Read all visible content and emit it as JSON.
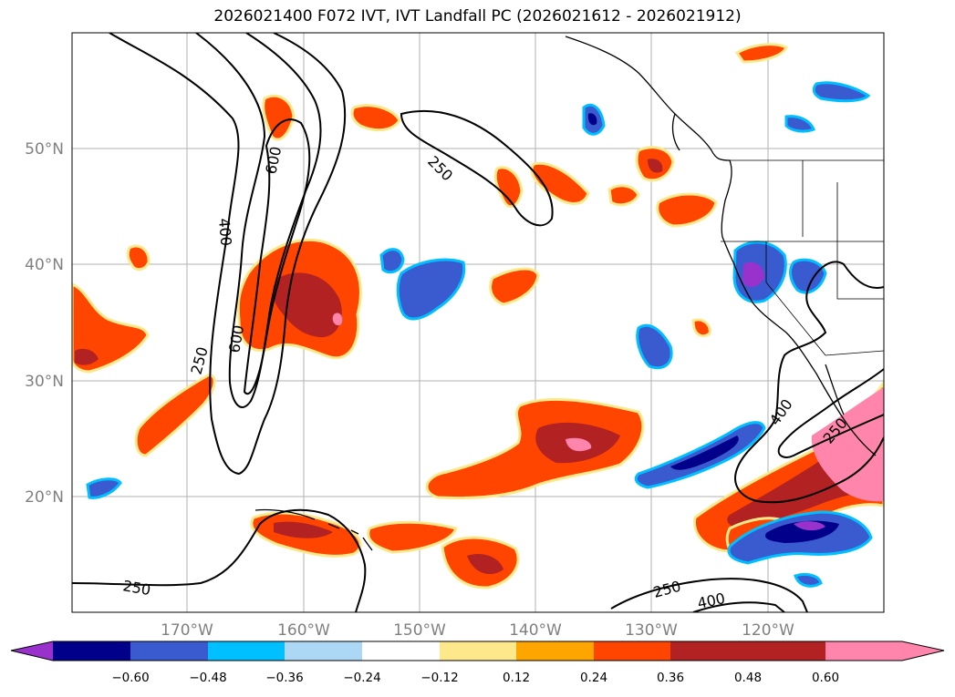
{
  "title": "2026021400 F072 IVT, IVT Landfall PC (2026021612 - 2026021912)",
  "map": {
    "lat_ticks": [
      "50°N",
      "40°N",
      "30°N",
      "20°N"
    ],
    "lon_ticks": [
      "170°W",
      "160°W",
      "150°W",
      "140°W",
      "130°W",
      "120°W"
    ],
    "contour_labels": [
      "600",
      "400",
      "600",
      "250",
      "250",
      "400",
      "250",
      "250",
      "250",
      "400"
    ],
    "colors": {
      "fill_positive": [
        "#fde98c",
        "#ffa500",
        "#ff4500",
        "#b22222",
        "#ff85ad"
      ],
      "fill_negative": [
        "#add8f5",
        "#00bfff",
        "#3a5bd0",
        "#00008b",
        "#9932cc"
      ],
      "contour": "#000000",
      "grid": "#b0b0b0"
    }
  },
  "colorbar": {
    "labels": [
      "−0.60",
      "−0.48",
      "−0.36",
      "−0.24",
      "−0.12",
      "0.12",
      "0.24",
      "0.36",
      "0.48",
      "0.60"
    ],
    "colors": [
      "#9932cc",
      "#00008b",
      "#3a5bd0",
      "#00bfff",
      "#add8f5",
      "#ffffff",
      "#fde98c",
      "#ffa500",
      "#ff4500",
      "#b22222",
      "#ff85ad"
    ]
  }
}
